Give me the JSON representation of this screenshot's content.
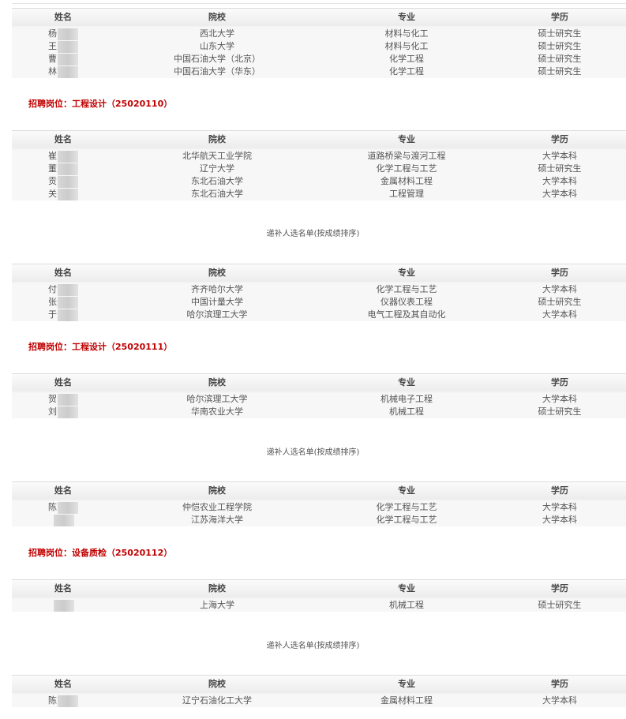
{
  "headers": [
    "姓名",
    "院校",
    "专业",
    "学历"
  ],
  "blocks": [
    {
      "type": "table",
      "rows": [
        {
          "surname": "杨",
          "school": "西北大学",
          "major": "材料与化工",
          "degree": "硕士研究生"
        },
        {
          "surname": "王",
          "school": "山东大学",
          "major": "材料与化工",
          "degree": "硕士研究生"
        },
        {
          "surname": "曹",
          "school": "中国石油大学（北京）",
          "major": "化学工程",
          "degree": "硕士研究生"
        },
        {
          "surname": "林",
          "school": "中国石油大学（华东）",
          "major": "化学工程",
          "degree": "硕士研究生"
        }
      ]
    },
    {
      "type": "post",
      "text": "招聘岗位：工程设计（25020110）"
    },
    {
      "type": "table",
      "rows": [
        {
          "surname": "崔",
          "school": "北华航天工业学院",
          "major": "道路桥梁与渡河工程",
          "degree": "大学本科"
        },
        {
          "surname": "董",
          "school": "辽宁大学",
          "major": "化学工程与工艺",
          "degree": "硕士研究生"
        },
        {
          "surname": "贡",
          "school": "东北石油大学",
          "major": "金属材料工程",
          "degree": "大学本科"
        },
        {
          "surname": "关",
          "school": "东北石油大学",
          "major": "工程管理",
          "degree": "大学本科"
        }
      ]
    },
    {
      "type": "sub",
      "text": "递补人选名单(按成绩排序)"
    },
    {
      "type": "table",
      "rows": [
        {
          "surname": "付",
          "school": "齐齐哈尔大学",
          "major": "化学工程与工艺",
          "degree": "大学本科"
        },
        {
          "surname": "张",
          "school": "中国计量大学",
          "major": "仪器仪表工程",
          "degree": "硕士研究生"
        },
        {
          "surname": "于",
          "school": "哈尔滨理工大学",
          "major": "电气工程及其自动化",
          "degree": "大学本科"
        }
      ]
    },
    {
      "type": "post",
      "text": "招聘岗位：工程设计（25020111）"
    },
    {
      "type": "table",
      "rows": [
        {
          "surname": "贺",
          "school": "哈尔滨理工大学",
          "major": "机械电子工程",
          "degree": "大学本科"
        },
        {
          "surname": "刘",
          "school": "华南农业大学",
          "major": "机械工程",
          "degree": "硕士研究生"
        }
      ]
    },
    {
      "type": "sub",
      "text": "递补人选名单(按成绩排序)"
    },
    {
      "type": "table",
      "rows": [
        {
          "surname": "陈",
          "school": "仲恺农业工程学院",
          "major": "化学工程与工艺",
          "degree": "大学本科"
        },
        {
          "surname": "",
          "school": "江苏海洋大学",
          "major": "化学工程与工艺",
          "degree": "大学本科"
        }
      ]
    },
    {
      "type": "post",
      "text": "招聘岗位：设备质检（25020112）"
    },
    {
      "type": "table",
      "rows": [
        {
          "surname": "",
          "school": "上海大学",
          "major": "机械工程",
          "degree": "硕士研究生"
        }
      ]
    },
    {
      "type": "sub",
      "text": "递补人选名单(按成绩排序)"
    },
    {
      "type": "table",
      "rows": [
        {
          "surname": "陈",
          "school": "辽宁石油化工大学",
          "major": "金属材料工程",
          "degree": "大学本科"
        }
      ]
    }
  ]
}
